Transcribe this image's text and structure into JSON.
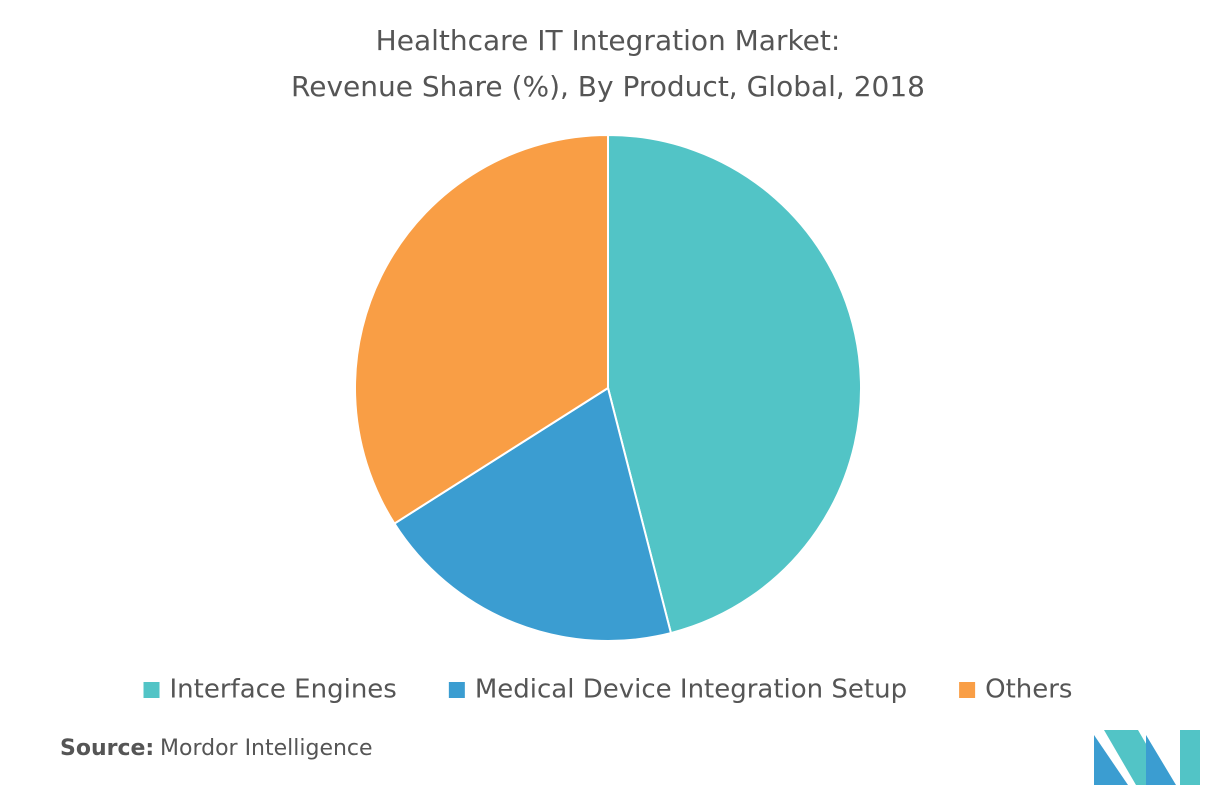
{
  "chart_data": {
    "type": "pie",
    "title": [
      "Healthcare IT Integration Market:",
      "Revenue Share (%), By Product, Global, 2018"
    ],
    "categories": [
      "Interface Engines",
      "Medical Device Integration Setup",
      "Others"
    ],
    "values": [
      46,
      20,
      34
    ],
    "colors": [
      "#52c4c6",
      "#3b9dd1",
      "#f99e45"
    ],
    "legend": "bottom",
    "source_label": "Source:",
    "source": "Mordor Intelligence"
  }
}
